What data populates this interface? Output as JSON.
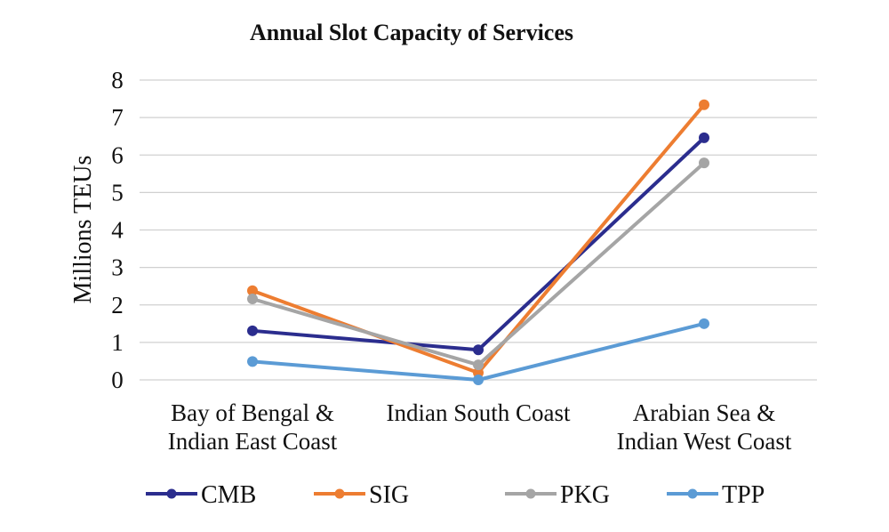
{
  "chart_data": {
    "type": "line",
    "title": "Annual Slot Capacity of Services",
    "xlabel": "",
    "ylabel": "Millions TEUs",
    "ylim": [
      0,
      8
    ],
    "yticks": [
      "0",
      "1",
      "2",
      "3",
      "4",
      "5",
      "6",
      "7",
      "8"
    ],
    "grid": true,
    "legend_position": "bottom",
    "categories": [
      [
        "Bay of Bengal &",
        "Indian East Coast"
      ],
      [
        "Indian South Coast"
      ],
      [
        "Arabian Sea &",
        "Indian West Coast"
      ]
    ],
    "series": [
      {
        "name": "CMB",
        "color": "#2b2d8e",
        "values": [
          1.31,
          0.8,
          6.46
        ]
      },
      {
        "name": "SIG",
        "color": "#ed7d31",
        "values": [
          2.38,
          0.19,
          7.34
        ]
      },
      {
        "name": "PKG",
        "color": "#a5a5a5",
        "values": [
          2.16,
          0.4,
          5.79
        ]
      },
      {
        "name": "TPP",
        "color": "#5b9bd5",
        "values": [
          0.49,
          0.0,
          1.5
        ]
      }
    ]
  }
}
